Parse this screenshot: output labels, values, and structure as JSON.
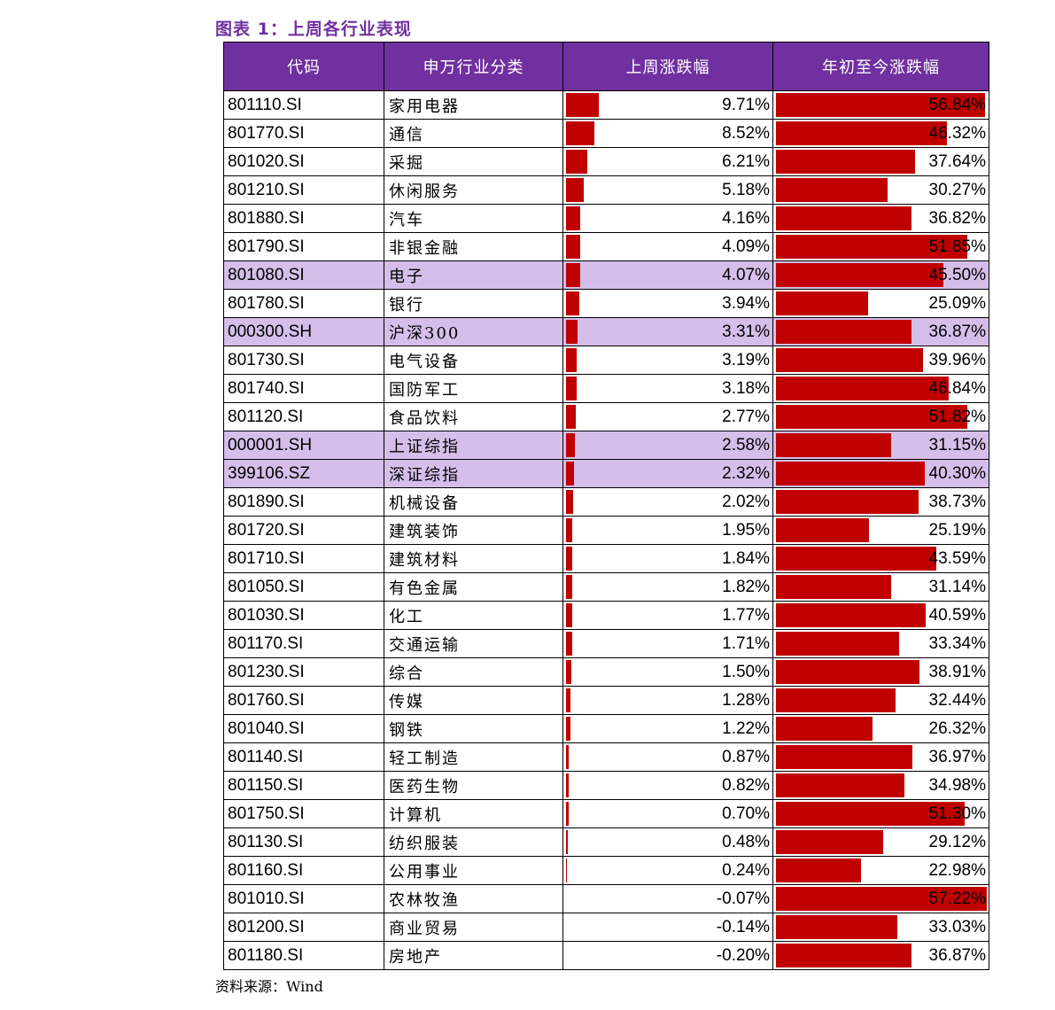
{
  "title": "图表 1：上周各行业表现",
  "source": "资料来源：Wind",
  "columns": [
    "代码",
    "申万行业分类",
    "上周涨跌幅",
    "年初至今涨跌幅"
  ],
  "colors": {
    "header": "#7030A0",
    "highlight": "#D5BFEA",
    "bar": "#C00000"
  },
  "chart_data": {
    "type": "table",
    "weekly_scale_max": 9.71,
    "ytd_scale_max": 57.22,
    "rows": [
      {
        "code": "801110.SI",
        "name": "家用电器",
        "weekly": 9.71,
        "weekly_label": "9.71%",
        "ytd": 56.84,
        "ytd_label": "56.84%",
        "highlight": false
      },
      {
        "code": "801770.SI",
        "name": "通信",
        "weekly": 8.52,
        "weekly_label": "8.52%",
        "ytd": 46.32,
        "ytd_label": "46.32%",
        "highlight": false
      },
      {
        "code": "801020.SI",
        "name": "采掘",
        "weekly": 6.21,
        "weekly_label": "6.21%",
        "ytd": 37.64,
        "ytd_label": "37.64%",
        "highlight": false
      },
      {
        "code": "801210.SI",
        "name": "休闲服务",
        "weekly": 5.18,
        "weekly_label": "5.18%",
        "ytd": 30.27,
        "ytd_label": "30.27%",
        "highlight": false
      },
      {
        "code": "801880.SI",
        "name": "汽车",
        "weekly": 4.16,
        "weekly_label": "4.16%",
        "ytd": 36.82,
        "ytd_label": "36.82%",
        "highlight": false
      },
      {
        "code": "801790.SI",
        "name": "非银金融",
        "weekly": 4.09,
        "weekly_label": "4.09%",
        "ytd": 51.85,
        "ytd_label": "51.85%",
        "highlight": false
      },
      {
        "code": "801080.SI",
        "name": "电子",
        "weekly": 4.07,
        "weekly_label": "4.07%",
        "ytd": 45.5,
        "ytd_label": "45.50%",
        "highlight": true
      },
      {
        "code": "801780.SI",
        "name": "银行",
        "weekly": 3.94,
        "weekly_label": "3.94%",
        "ytd": 25.09,
        "ytd_label": "25.09%",
        "highlight": false
      },
      {
        "code": "000300.SH",
        "name": "沪深300",
        "weekly": 3.31,
        "weekly_label": "3.31%",
        "ytd": 36.87,
        "ytd_label": "36.87%",
        "highlight": true
      },
      {
        "code": "801730.SI",
        "name": "电气设备",
        "weekly": 3.19,
        "weekly_label": "3.19%",
        "ytd": 39.96,
        "ytd_label": "39.96%",
        "highlight": false
      },
      {
        "code": "801740.SI",
        "name": "国防军工",
        "weekly": 3.18,
        "weekly_label": "3.18%",
        "ytd": 46.84,
        "ytd_label": "46.84%",
        "highlight": false
      },
      {
        "code": "801120.SI",
        "name": "食品饮料",
        "weekly": 2.77,
        "weekly_label": "2.77%",
        "ytd": 51.82,
        "ytd_label": "51.82%",
        "highlight": false
      },
      {
        "code": "000001.SH",
        "name": "上证综指",
        "weekly": 2.58,
        "weekly_label": "2.58%",
        "ytd": 31.15,
        "ytd_label": "31.15%",
        "highlight": true
      },
      {
        "code": "399106.SZ",
        "name": "深证综指",
        "weekly": 2.32,
        "weekly_label": "2.32%",
        "ytd": 40.3,
        "ytd_label": "40.30%",
        "highlight": true
      },
      {
        "code": "801890.SI",
        "name": "机械设备",
        "weekly": 2.02,
        "weekly_label": "2.02%",
        "ytd": 38.73,
        "ytd_label": "38.73%",
        "highlight": false
      },
      {
        "code": "801720.SI",
        "name": "建筑装饰",
        "weekly": 1.95,
        "weekly_label": "1.95%",
        "ytd": 25.19,
        "ytd_label": "25.19%",
        "highlight": false
      },
      {
        "code": "801710.SI",
        "name": "建筑材料",
        "weekly": 1.84,
        "weekly_label": "1.84%",
        "ytd": 43.59,
        "ytd_label": "43.59%",
        "highlight": false
      },
      {
        "code": "801050.SI",
        "name": "有色金属",
        "weekly": 1.82,
        "weekly_label": "1.82%",
        "ytd": 31.14,
        "ytd_label": "31.14%",
        "highlight": false
      },
      {
        "code": "801030.SI",
        "name": "化工",
        "weekly": 1.77,
        "weekly_label": "1.77%",
        "ytd": 40.59,
        "ytd_label": "40.59%",
        "highlight": false
      },
      {
        "code": "801170.SI",
        "name": "交通运输",
        "weekly": 1.71,
        "weekly_label": "1.71%",
        "ytd": 33.34,
        "ytd_label": "33.34%",
        "highlight": false
      },
      {
        "code": "801230.SI",
        "name": "综合",
        "weekly": 1.5,
        "weekly_label": "1.50%",
        "ytd": 38.91,
        "ytd_label": "38.91%",
        "highlight": false
      },
      {
        "code": "801760.SI",
        "name": "传媒",
        "weekly": 1.28,
        "weekly_label": "1.28%",
        "ytd": 32.44,
        "ytd_label": "32.44%",
        "highlight": false
      },
      {
        "code": "801040.SI",
        "name": "钢铁",
        "weekly": 1.22,
        "weekly_label": "1.22%",
        "ytd": 26.32,
        "ytd_label": "26.32%",
        "highlight": false
      },
      {
        "code": "801140.SI",
        "name": "轻工制造",
        "weekly": 0.87,
        "weekly_label": "0.87%",
        "ytd": 36.97,
        "ytd_label": "36.97%",
        "highlight": false
      },
      {
        "code": "801150.SI",
        "name": "医药生物",
        "weekly": 0.82,
        "weekly_label": "0.82%",
        "ytd": 34.98,
        "ytd_label": "34.98%",
        "highlight": false
      },
      {
        "code": "801750.SI",
        "name": "计算机",
        "weekly": 0.7,
        "weekly_label": "0.70%",
        "ytd": 51.3,
        "ytd_label": "51.30%",
        "highlight": false
      },
      {
        "code": "801130.SI",
        "name": "纺织服装",
        "weekly": 0.48,
        "weekly_label": "0.48%",
        "ytd": 29.12,
        "ytd_label": "29.12%",
        "highlight": false
      },
      {
        "code": "801160.SI",
        "name": "公用事业",
        "weekly": 0.24,
        "weekly_label": "0.24%",
        "ytd": 22.98,
        "ytd_label": "22.98%",
        "highlight": false
      },
      {
        "code": "801010.SI",
        "name": "农林牧渔",
        "weekly": -0.07,
        "weekly_label": "-0.07%",
        "ytd": 57.22,
        "ytd_label": "57.22%",
        "highlight": false
      },
      {
        "code": "801200.SI",
        "name": "商业贸易",
        "weekly": -0.14,
        "weekly_label": "-0.14%",
        "ytd": 33.03,
        "ytd_label": "33.03%",
        "highlight": false
      },
      {
        "code": "801180.SI",
        "name": "房地产",
        "weekly": -0.2,
        "weekly_label": "-0.20%",
        "ytd": 36.87,
        "ytd_label": "36.87%",
        "highlight": false
      }
    ]
  }
}
